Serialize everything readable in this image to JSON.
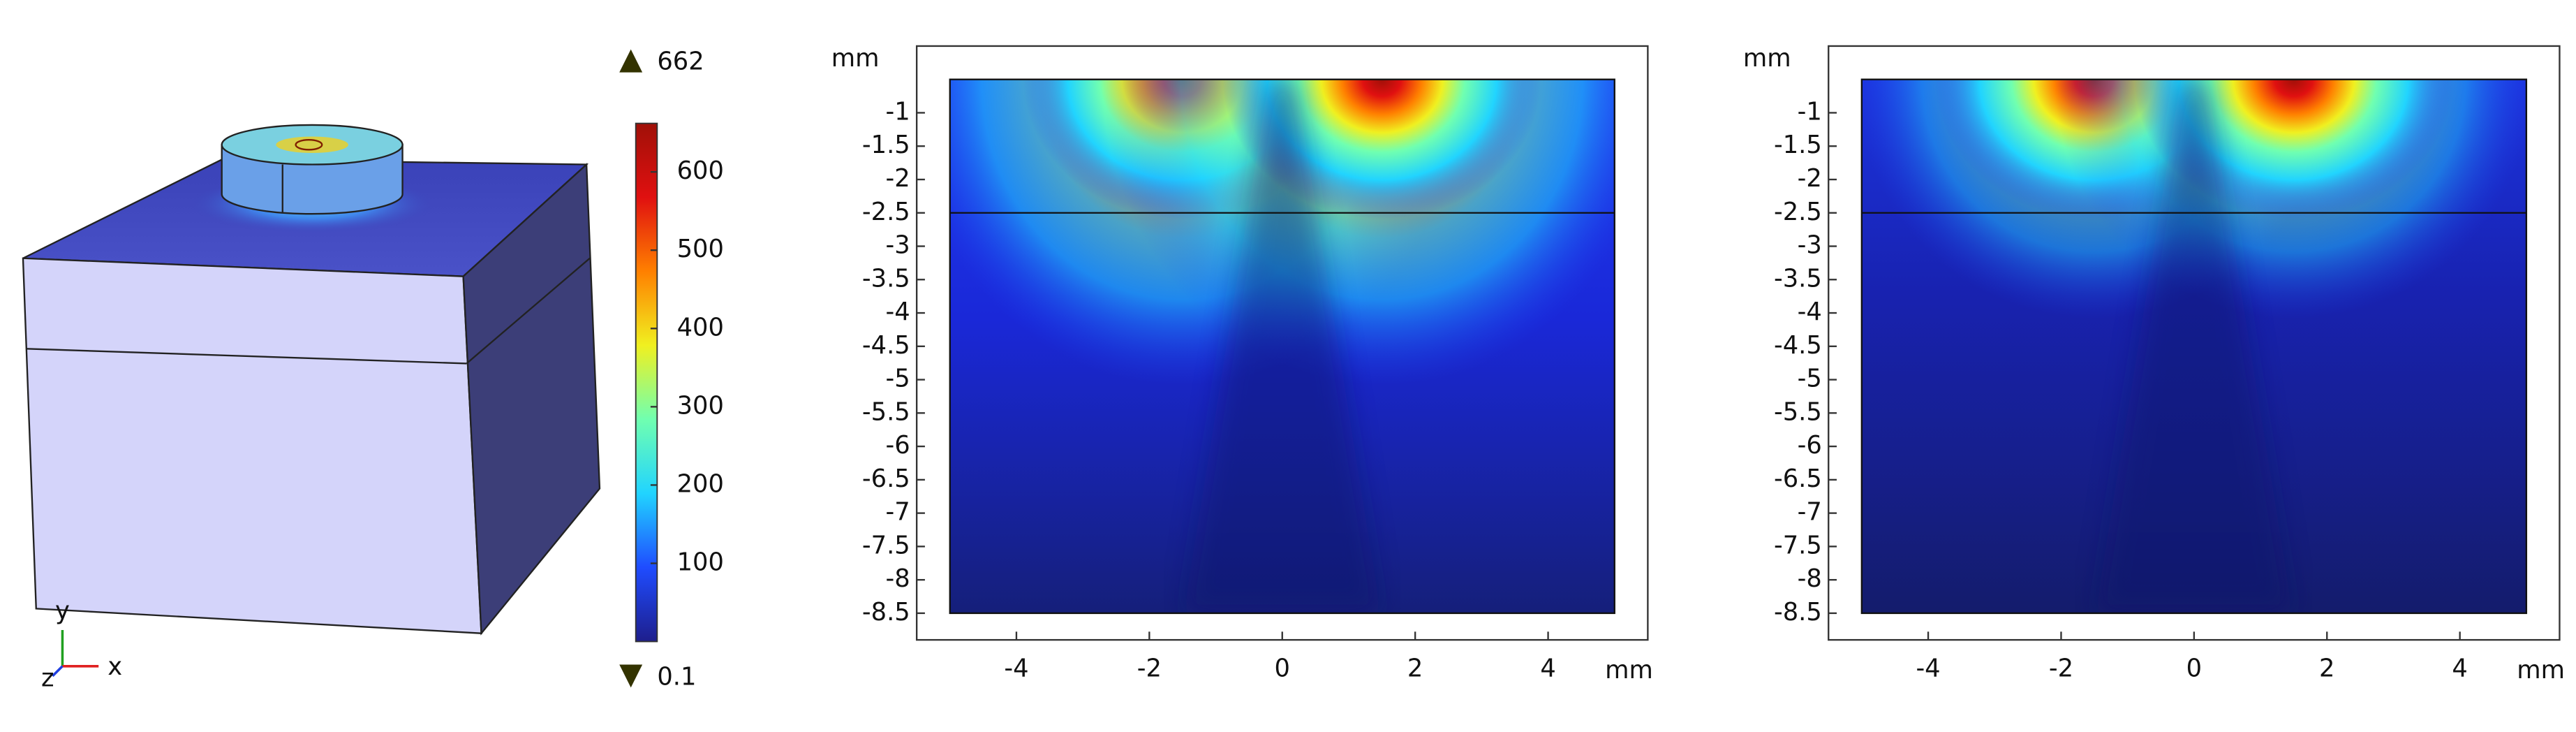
{
  "chart_data": [
    {
      "type": "view3d",
      "triad_labels": [
        "y",
        "x",
        "z"
      ],
      "colorbar": {
        "ylim": [
          0.1,
          662
        ],
        "yticks": [
          100,
          200,
          300,
          400,
          500,
          600
        ],
        "max_label": 662,
        "min_label": 0.1,
        "colormap": [
          "#1e1e8c",
          "#1f4cff",
          "#21d4ff",
          "#70ffb0",
          "#f0f020",
          "#ff8000",
          "#e01010",
          "#a01008"
        ]
      }
    },
    {
      "type": "heatmap",
      "y_unit": "mm",
      "x_unit": "mm",
      "xlim": [
        -5.5,
        5.5
      ],
      "ylim": [
        -8.9,
        0
      ],
      "xticks": [
        -4,
        -2,
        0,
        2,
        4
      ],
      "yticks": [
        -1,
        -1.5,
        -2,
        -2.5,
        -3,
        -3.5,
        -4,
        -4.5,
        -5,
        -5.5,
        -6,
        -6.5,
        -7,
        -7.5,
        -8,
        -8.5
      ],
      "domain_x": [
        -5,
        5
      ],
      "domain_y": [
        -8.5,
        -0.5
      ],
      "layer_y": -2.5,
      "hot_spots_x": [
        -1.5,
        1.5
      ]
    },
    {
      "type": "heatmap",
      "y_unit": "mm",
      "x_unit": "mm",
      "xlim": [
        -5.5,
        5.5
      ],
      "ylim": [
        -8.9,
        0
      ],
      "xticks": [
        -4,
        -2,
        0,
        2,
        4
      ],
      "yticks": [
        -1,
        -1.5,
        -2,
        -2.5,
        -3,
        -3.5,
        -4,
        -4.5,
        -5,
        -5.5,
        -6,
        -6.5,
        -7,
        -7.5,
        -8,
        -8.5
      ],
      "domain_x": [
        -5,
        5
      ],
      "domain_y": [
        -8.5,
        -0.5
      ],
      "layer_y": -2.5,
      "hot_spots_x": [
        -1.5,
        1.5
      ]
    }
  ]
}
